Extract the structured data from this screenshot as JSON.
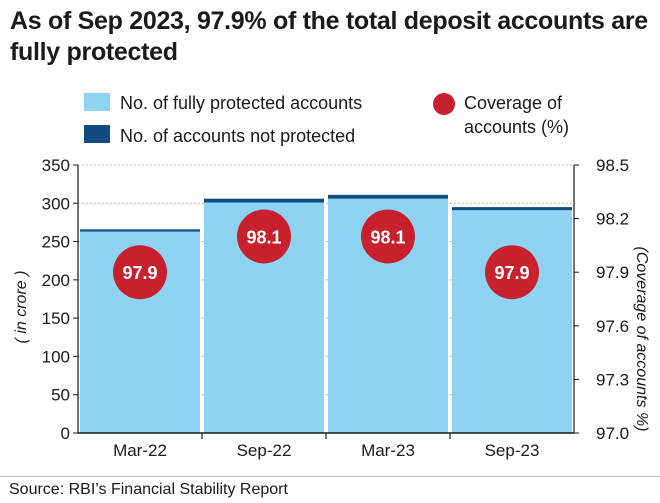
{
  "title": "As of Sep 2023, 97.9% of the total deposit accounts are fully protected",
  "source": "Source: RBI’s Financial Stability Report",
  "colors": {
    "protected": "#8ed3f2",
    "not_protected": "#124a82",
    "coverage": "#c8202d",
    "gridline": "#9a9a9a"
  },
  "chart_data": {
    "type": "bar",
    "stacked": true,
    "categories": [
      "Mar-22",
      "Sep-22",
      "Mar-23",
      "Sep-23"
    ],
    "series": [
      {
        "name": "No. of fully protected accounts",
        "axis": "left",
        "values": [
          263,
          301,
          306,
          291
        ]
      },
      {
        "name": "No. of accounts not protected",
        "axis": "left",
        "values": [
          3,
          5,
          5,
          4
        ]
      },
      {
        "name": "Coverage of accounts (%)",
        "axis": "right",
        "display": "bubble",
        "values": [
          97.9,
          98.1,
          98.1,
          97.9
        ]
      }
    ],
    "ylabel": "( in crore )",
    "ylabel_right": "(Coverage of accounts %)",
    "ylim": [
      0,
      350
    ],
    "yticks": [
      0,
      50,
      100,
      150,
      200,
      250,
      300,
      350
    ],
    "ylim_right": [
      97.0,
      98.5
    ],
    "yticks_right": [
      "97.0",
      "97.3",
      "97.6",
      "97.9",
      "98.2",
      "98.5"
    ],
    "grid": true,
    "legend_position": "top",
    "legend": [
      {
        "label": "No. of fully protected accounts",
        "marker": "square",
        "color": "#8ed3f2"
      },
      {
        "label": "No. of accounts not protected",
        "marker": "square",
        "color": "#124a82"
      },
      {
        "label": "Coverage of accounts (%)",
        "marker": "circle",
        "color": "#c8202d"
      }
    ]
  }
}
